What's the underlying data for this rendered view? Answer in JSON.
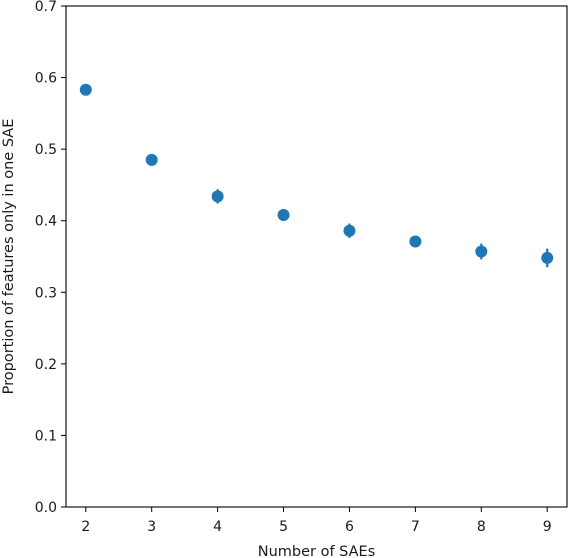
{
  "chart_data": {
    "type": "scatter",
    "xlabel": "Number of SAEs",
    "ylabel": "Proportion of features only in one SAE",
    "xlim": [
      1.7,
      9.3
    ],
    "ylim": [
      0.0,
      0.7
    ],
    "xticks": [
      "2",
      "3",
      "4",
      "5",
      "6",
      "7",
      "8",
      "9"
    ],
    "yticks": [
      "0.0",
      "0.1",
      "0.2",
      "0.3",
      "0.4",
      "0.5",
      "0.6",
      "0.7"
    ],
    "grid": false,
    "marker_color": "#1f77b4",
    "series": [
      {
        "x": [
          2,
          3,
          4,
          5,
          6,
          7,
          8,
          9
        ],
        "y": [
          0.583,
          0.485,
          0.434,
          0.408,
          0.386,
          0.371,
          0.357,
          0.348
        ],
        "error": [
          0.004,
          0.005,
          0.01,
          0.006,
          0.01,
          0.006,
          0.011,
          0.013
        ]
      }
    ]
  }
}
